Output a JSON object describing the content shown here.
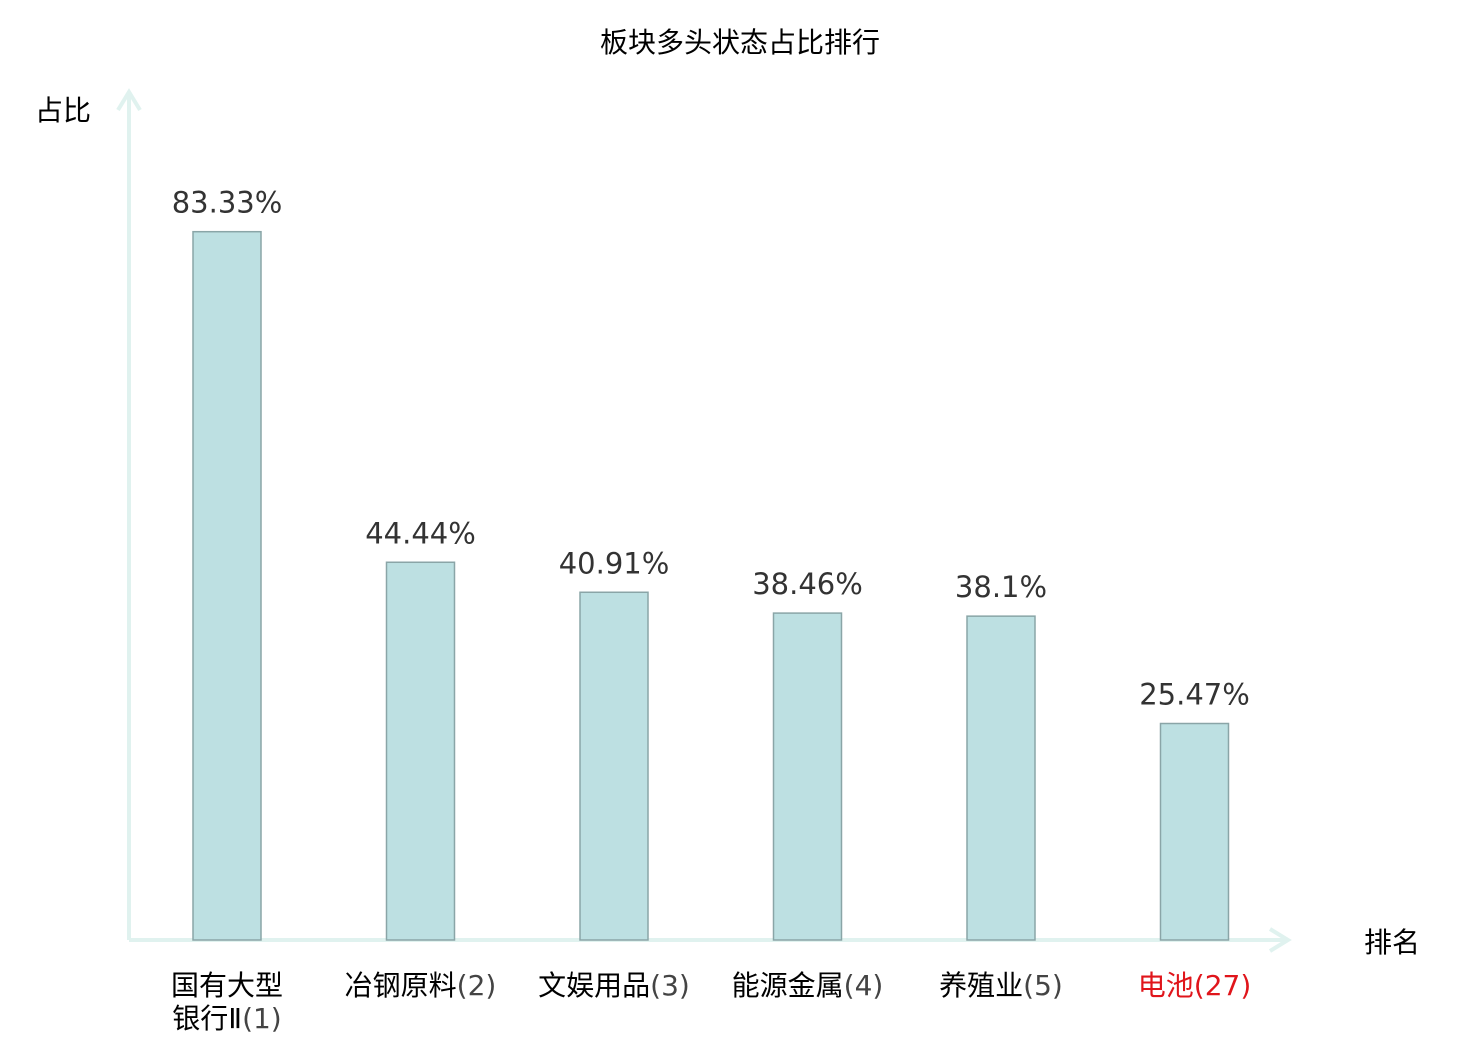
{
  "chart_data": {
    "type": "bar",
    "title": "板块多头状态占比排行",
    "ylabel": "占比",
    "xlabel": "排名",
    "ylim": [
      0,
      100
    ],
    "grid": false,
    "categories": [
      {
        "name_lines": [
          "国有大型",
          "银行Ⅱ"
        ],
        "rank": "(1)",
        "highlight": false
      },
      {
        "name_lines": [
          "冶钢原料"
        ],
        "rank": "(2)",
        "highlight": false
      },
      {
        "name_lines": [
          "文娱用品"
        ],
        "rank": "(3)",
        "highlight": false
      },
      {
        "name_lines": [
          "能源金属"
        ],
        "rank": "(4)",
        "highlight": false
      },
      {
        "name_lines": [
          "养殖业"
        ],
        "rank": "(5)",
        "highlight": false
      },
      {
        "name_lines": [
          "电池"
        ],
        "rank": "(27)",
        "highlight": true
      }
    ],
    "values": [
      83.33,
      44.44,
      40.91,
      38.46,
      38.1,
      25.47
    ],
    "value_labels": [
      "83.33%",
      "44.44%",
      "40.91%",
      "38.46%",
      "38.1%",
      "25.47%"
    ],
    "colors": {
      "bar_fill": "#bde0e2",
      "bar_stroke": "#8aa5a7",
      "axis": "#e0f2ef",
      "text": "#000000",
      "value_text": "#333333",
      "rank_text": "#444444",
      "highlight_text": "#e0151b"
    }
  }
}
